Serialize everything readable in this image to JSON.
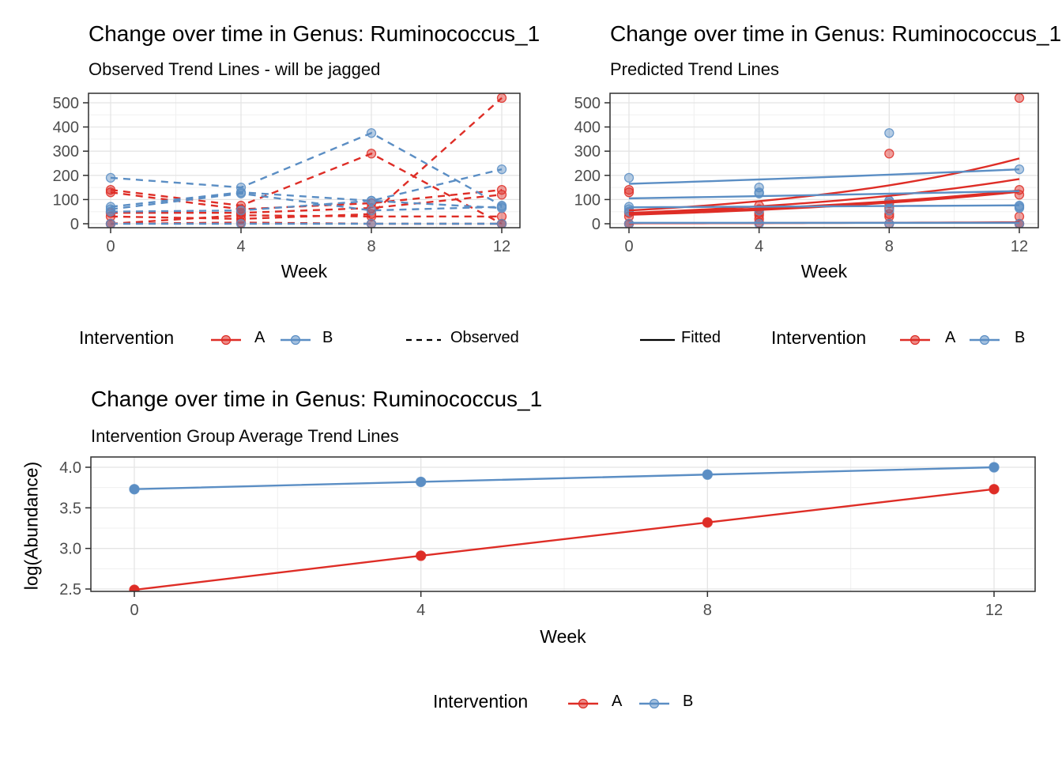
{
  "chart_data": {
    "colors": {
      "A": "#DE2D26",
      "B": "#5B8EC4",
      "grid_major": "#E4E4E4",
      "grid_minor": "#F0F0F0",
      "panel_border": "#2F2F2F",
      "axis_text": "#4D4D4D"
    },
    "observed": {
      "type": "line",
      "title": "Change over time in Genus: Ruminococcus_1",
      "subtitle": "Observed Trend Lines - will be jagged",
      "xlabel": "Week",
      "line_style": "dashed",
      "x": [
        0,
        4,
        8,
        12
      ],
      "x_ticks": [
        0,
        4,
        8,
        12
      ],
      "x_tick_labels": [
        "0",
        "4",
        "8",
        "12"
      ],
      "x_minor": [
        2,
        6,
        10
      ],
      "y_ticks": [
        0,
        100,
        200,
        300,
        400,
        500
      ],
      "y_tick_labels": [
        "0",
        "100",
        "200",
        "300",
        "400",
        "500"
      ],
      "y_minor": [
        50,
        150,
        250,
        350,
        450
      ],
      "xlim": [
        -0.7,
        12.6
      ],
      "ylim": [
        -16,
        539
      ],
      "series": [
        {
          "group": "A",
          "values": [
            140,
            75,
            290,
            0
          ]
        },
        {
          "group": "A",
          "values": [
            130,
            60,
            85,
            140
          ]
        },
        {
          "group": "A",
          "values": [
            45,
            45,
            65,
            120
          ]
        },
        {
          "group": "A",
          "values": [
            30,
            20,
            40,
            520
          ]
        },
        {
          "group": "A",
          "values": [
            0,
            5,
            0,
            0
          ]
        },
        {
          "group": "A",
          "values": [
            0,
            35,
            30,
            30
          ]
        },
        {
          "group": "B",
          "values": [
            190,
            150,
            375,
            75
          ]
        },
        {
          "group": "B",
          "values": [
            70,
            130,
            95,
            225
          ]
        },
        {
          "group": "B",
          "values": [
            60,
            125,
            55,
            70
          ]
        },
        {
          "group": "B",
          "values": [
            50,
            55,
            95,
            65
          ]
        },
        {
          "group": "B",
          "values": [
            0,
            0,
            0,
            0
          ]
        }
      ]
    },
    "predicted": {
      "type": "line",
      "title": "Change over time in Genus: Ruminococcus_1",
      "subtitle": "Predicted Trend Lines",
      "xlabel": "Week",
      "line_style": "solid",
      "x": [
        0,
        4,
        8,
        12
      ],
      "x_ticks": [
        0,
        4,
        8,
        12
      ],
      "x_tick_labels": [
        "0",
        "4",
        "8",
        "12"
      ],
      "x_minor": [
        2,
        6,
        10
      ],
      "y_ticks": [
        0,
        100,
        200,
        300,
        400,
        500
      ],
      "y_tick_labels": [
        "0",
        "100",
        "200",
        "300",
        "400",
        "500"
      ],
      "y_minor": [
        50,
        150,
        250,
        350,
        450
      ],
      "xlim": [
        -0.7,
        12.6
      ],
      "ylim": [
        -16,
        539
      ],
      "scatter": [
        {
          "group": "A",
          "values": [
            140,
            75,
            290,
            0
          ]
        },
        {
          "group": "A",
          "values": [
            130,
            60,
            85,
            140
          ]
        },
        {
          "group": "A",
          "values": [
            45,
            45,
            65,
            120
          ]
        },
        {
          "group": "A",
          "values": [
            30,
            20,
            40,
            520
          ]
        },
        {
          "group": "A",
          "values": [
            0,
            5,
            0,
            0
          ]
        },
        {
          "group": "A",
          "values": [
            0,
            35,
            30,
            30
          ]
        },
        {
          "group": "B",
          "values": [
            190,
            150,
            375,
            75
          ]
        },
        {
          "group": "B",
          "values": [
            70,
            130,
            95,
            225
          ]
        },
        {
          "group": "B",
          "values": [
            60,
            125,
            55,
            70
          ]
        },
        {
          "group": "B",
          "values": [
            50,
            55,
            95,
            65
          ]
        },
        {
          "group": "B",
          "values": [
            0,
            0,
            0,
            0
          ]
        }
      ],
      "fitted": [
        {
          "group": "A",
          "from": 55,
          "to": 270,
          "width": 2.4
        },
        {
          "group": "A",
          "from": 45,
          "to": 185,
          "width": 2.4
        },
        {
          "group": "A",
          "from": 40,
          "to": 135,
          "width": 4.2
        },
        {
          "group": "A",
          "from": 2,
          "to": 6,
          "width": 2.4
        },
        {
          "group": "B",
          "from": 165,
          "to": 225,
          "width": 2.4
        },
        {
          "group": "B",
          "from": 105,
          "to": 135,
          "width": 2.4
        },
        {
          "group": "B",
          "from": 68,
          "to": 76,
          "width": 2.4
        },
        {
          "group": "B",
          "from": 4,
          "to": 4,
          "width": 2.4
        }
      ]
    },
    "average": {
      "type": "line",
      "title": "Change over time in Genus: Ruminococcus_1",
      "subtitle": "Intervention Group Average Trend Lines",
      "xlabel": "Week",
      "ylabel": "log(Abundance)",
      "line_style": "solid",
      "x": [
        0,
        4,
        8,
        12
      ],
      "x_ticks": [
        0,
        4,
        8,
        12
      ],
      "x_tick_labels": [
        "0",
        "4",
        "8",
        "12"
      ],
      "x_minor": [
        2,
        6,
        10
      ],
      "y_ticks": [
        2.5,
        3.0,
        3.5,
        4.0
      ],
      "y_tick_labels": [
        "2.5",
        "3.0",
        "3.5",
        "4.0"
      ],
      "y_minor": [
        2.75,
        3.25,
        3.75
      ],
      "xlim": [
        -0.6,
        12.6
      ],
      "ylim": [
        2.45,
        4.13
      ],
      "series": [
        {
          "group": "A",
          "values": [
            2.49,
            2.91,
            3.32,
            3.73
          ]
        },
        {
          "group": "B",
          "values": [
            3.73,
            3.82,
            3.91,
            4.0
          ]
        }
      ]
    }
  },
  "legends": {
    "observed": {
      "title": "Intervention",
      "a_label": "A",
      "b_label": "B",
      "linetype_label": "Observed"
    },
    "predicted": {
      "fitted_label": "Fitted",
      "title": "Intervention",
      "a_label": "A",
      "b_label": "B"
    },
    "average": {
      "title": "Intervention",
      "a_label": "A",
      "b_label": "B"
    }
  }
}
